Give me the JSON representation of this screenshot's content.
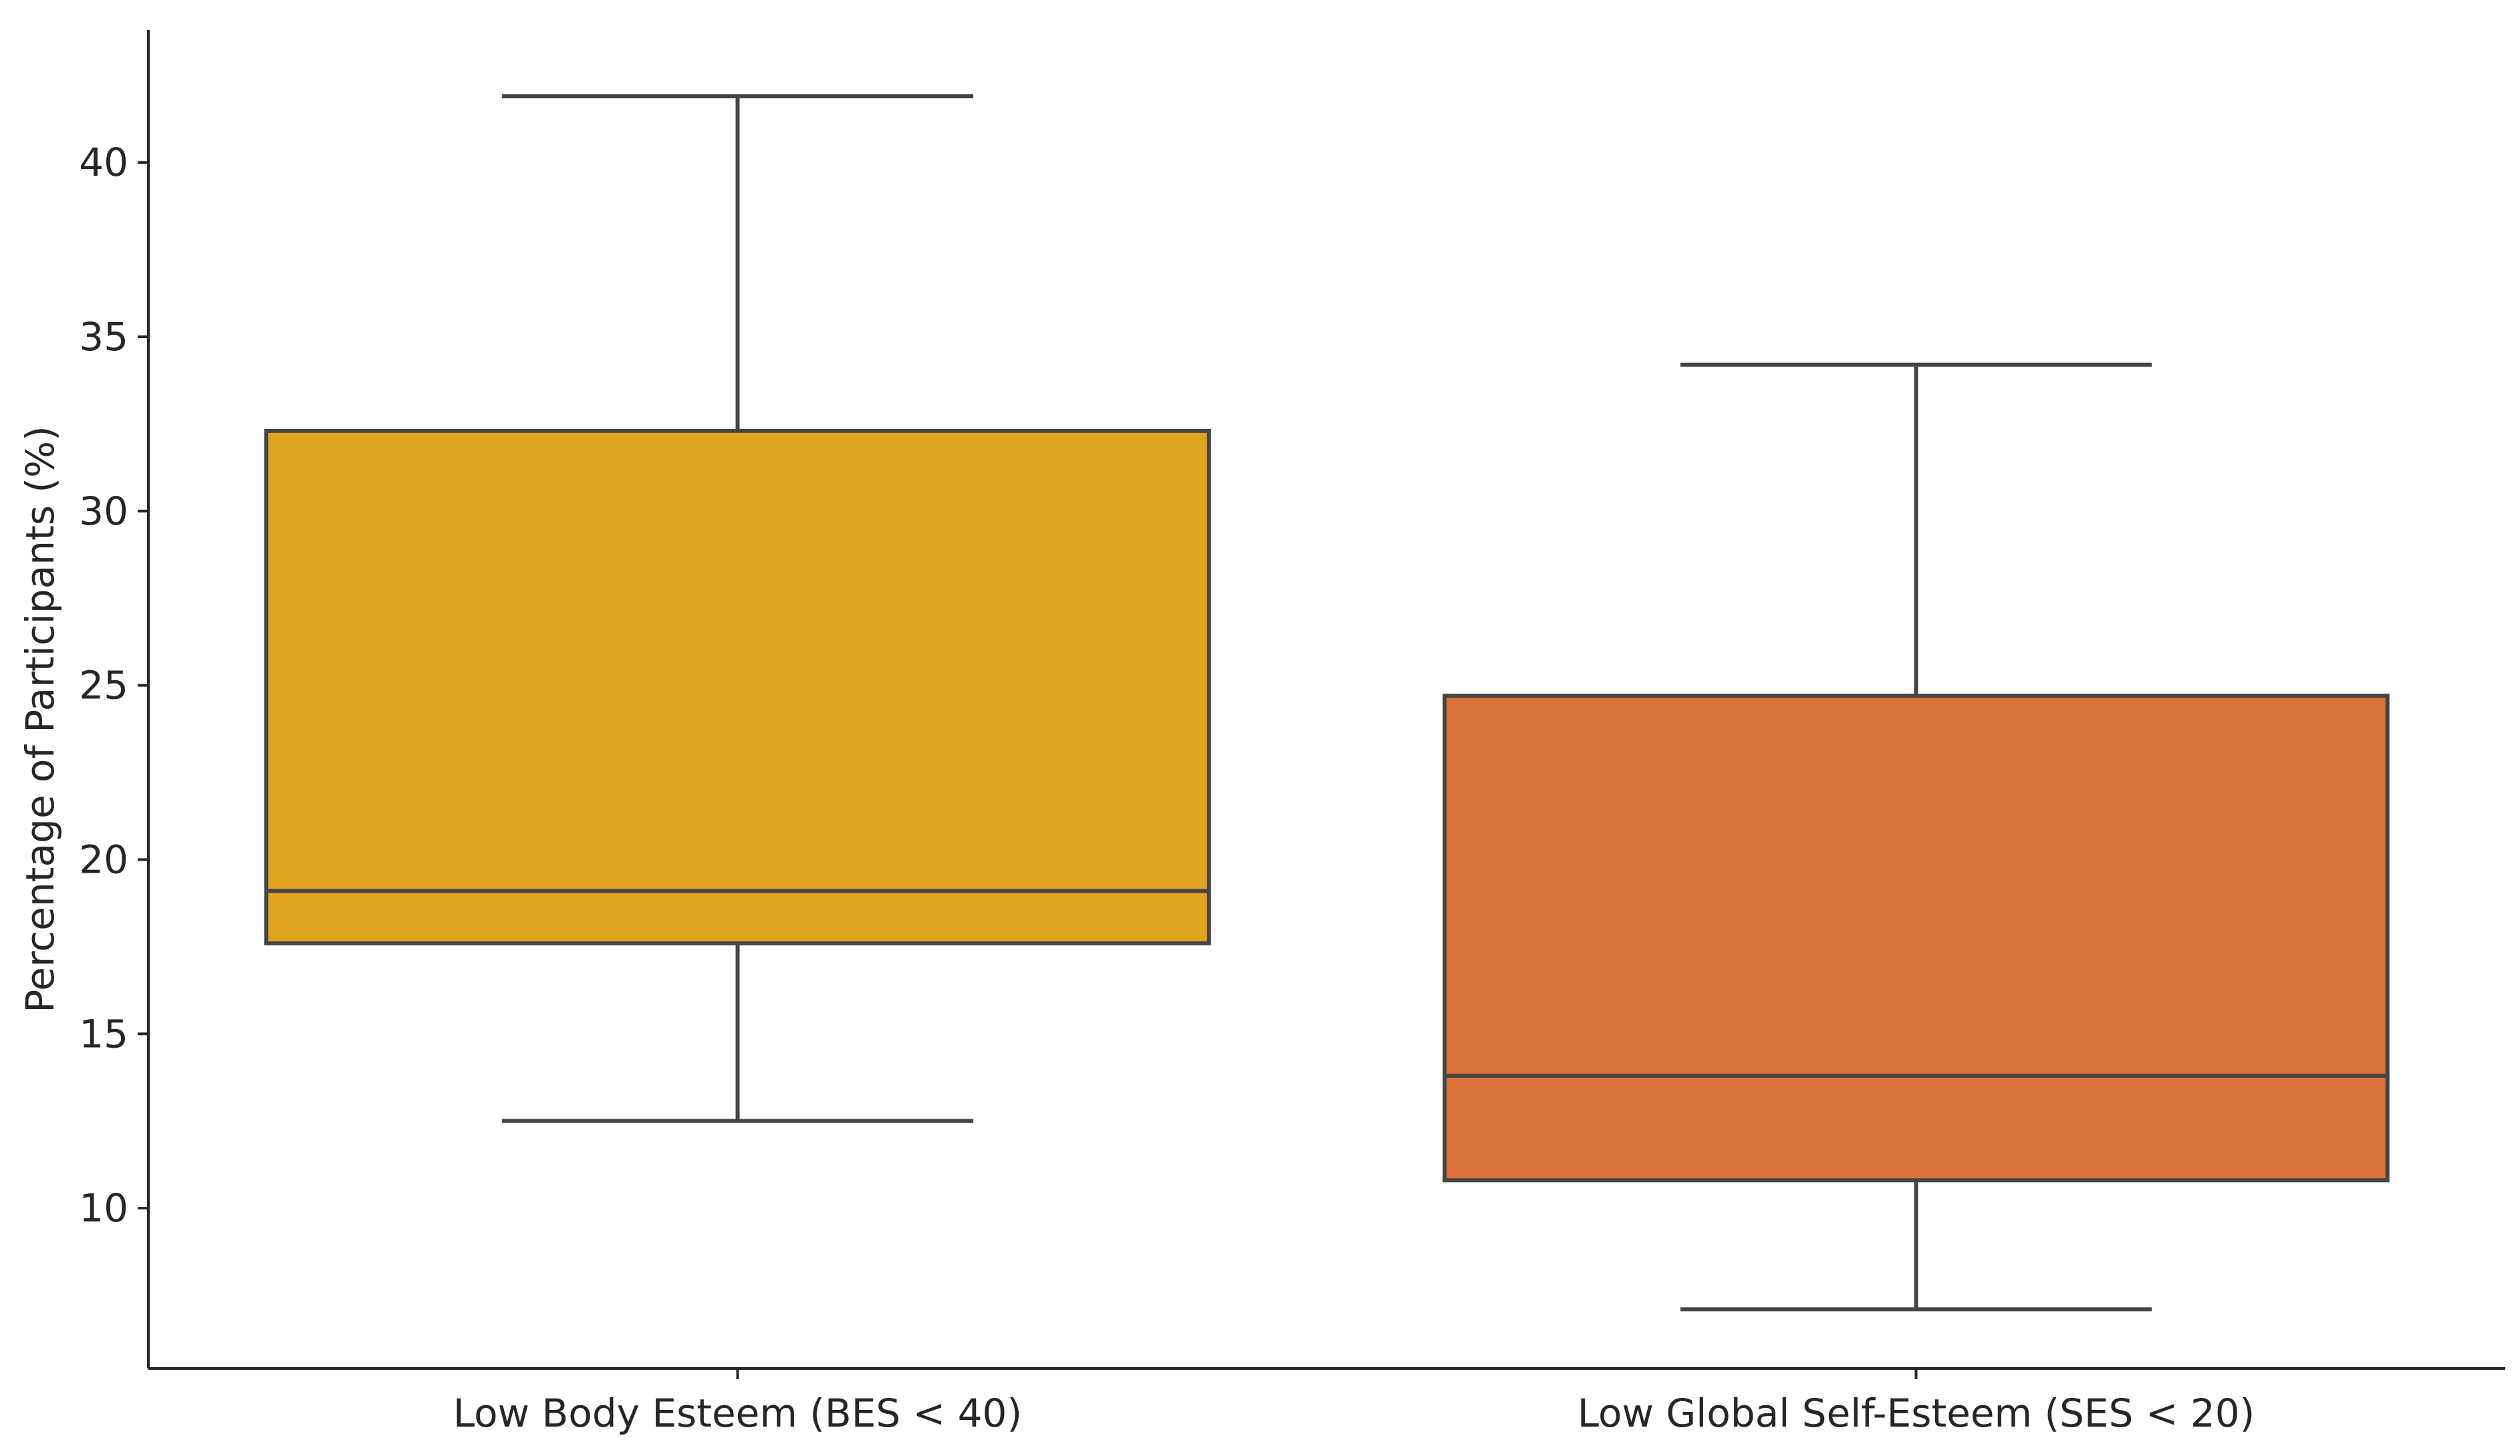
{
  "chart_data": {
    "type": "box",
    "title": "",
    "xlabel": "",
    "ylabel": "Percentage of Participants (%)",
    "ylim": [
      5.4,
      43.8
    ],
    "yticks": [
      10,
      15,
      20,
      25,
      30,
      35,
      40
    ],
    "grid": false,
    "legend": "none",
    "categories": [
      "Low Body Esteem (BES < 40)",
      "Low Global Self-Esteem (SES < 20)"
    ],
    "boxes": [
      {
        "category": "Low Body Esteem (BES < 40)",
        "whisker_low": 12.5,
        "q1": 17.6,
        "median": 19.1,
        "q3": 32.3,
        "whisker_high": 41.9,
        "color": "#DFA320"
      },
      {
        "category": "Low Global Self-Esteem (SES < 20)",
        "whisker_low": 7.1,
        "q1": 10.8,
        "median": 13.8,
        "q3": 24.7,
        "whisker_high": 34.2,
        "color": "#DB713B"
      }
    ],
    "line_color": "#454545"
  }
}
